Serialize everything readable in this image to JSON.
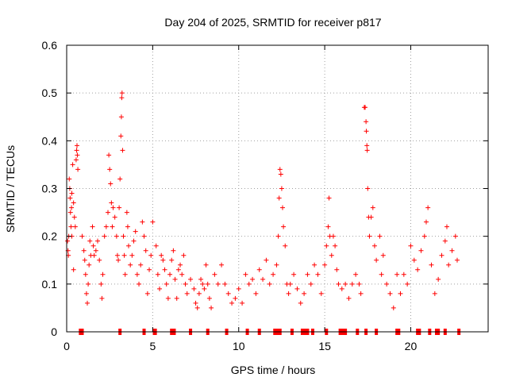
{
  "chart_data": {
    "type": "scatter",
    "title": "Day 204 of 2025, SRMTID for receiver p817",
    "xlabel": "GPS time / hours",
    "ylabel": "SRMTID / TECUs",
    "xlim": [
      0,
      24.5
    ],
    "ylim": [
      0,
      0.6
    ],
    "x_ticks": [
      0,
      5,
      10,
      15,
      20
    ],
    "x_tick_labels": [
      "0",
      "5",
      "10",
      "15",
      "20"
    ],
    "y_ticks": [
      0,
      0.1,
      0.2,
      0.3,
      0.4,
      0.5,
      0.6
    ],
    "y_tick_labels": [
      "0",
      "0.1",
      "0.2",
      "0.3",
      "0.4",
      "0.5",
      "0.6"
    ],
    "grid": true,
    "marker": "plus",
    "series_color": "#ff0000",
    "series": [
      {
        "name": "SRMTID",
        "points": [
          [
            0.05,
            0.19
          ],
          [
            0.08,
            0.17
          ],
          [
            0.1,
            0.16
          ],
          [
            0.12,
            0.2
          ],
          [
            0.15,
            0.32
          ],
          [
            0.18,
            0.3
          ],
          [
            0.2,
            0.28
          ],
          [
            0.22,
            0.25
          ],
          [
            0.25,
            0.22
          ],
          [
            0.28,
            0.26
          ],
          [
            0.3,
            0.29
          ],
          [
            0.35,
            0.35
          ],
          [
            0.4,
            0.27
          ],
          [
            0.45,
            0.24
          ],
          [
            0.5,
            0.22
          ],
          [
            0.55,
            0.36
          ],
          [
            0.58,
            0.38
          ],
          [
            0.6,
            0.39
          ],
          [
            0.62,
            0.37
          ],
          [
            0.65,
            0.34
          ],
          [
            0.4,
            0.13
          ],
          [
            0.3,
            0.2
          ],
          [
            0.9,
            0.2
          ],
          [
            1.0,
            0.17
          ],
          [
            1.05,
            0.15
          ],
          [
            1.1,
            0.12
          ],
          [
            1.15,
            0.08
          ],
          [
            1.2,
            0.06
          ],
          [
            1.25,
            0.1
          ],
          [
            1.3,
            0.14
          ],
          [
            1.35,
            0.19
          ],
          [
            1.4,
            0.16
          ],
          [
            1.5,
            0.22
          ],
          [
            1.55,
            0.18
          ],
          [
            1.6,
            0.16
          ],
          [
            1.7,
            0.17
          ],
          [
            1.8,
            0.19
          ],
          [
            1.9,
            0.15
          ],
          [
            2.0,
            0.1
          ],
          [
            2.05,
            0.07
          ],
          [
            2.1,
            0.12
          ],
          [
            2.2,
            0.2
          ],
          [
            2.3,
            0.22
          ],
          [
            2.4,
            0.25
          ],
          [
            2.45,
            0.37
          ],
          [
            2.5,
            0.34
          ],
          [
            2.55,
            0.31
          ],
          [
            2.6,
            0.27
          ],
          [
            2.65,
            0.22
          ],
          [
            2.7,
            0.26
          ],
          [
            2.8,
            0.24
          ],
          [
            2.9,
            0.2
          ],
          [
            2.95,
            0.16
          ],
          [
            3.0,
            0.15
          ],
          [
            3.05,
            0.26
          ],
          [
            3.1,
            0.32
          ],
          [
            3.15,
            0.41
          ],
          [
            3.18,
            0.45
          ],
          [
            3.2,
            0.49
          ],
          [
            3.22,
            0.5
          ],
          [
            3.25,
            0.38
          ],
          [
            3.3,
            0.2
          ],
          [
            3.35,
            0.16
          ],
          [
            3.4,
            0.12
          ],
          [
            3.5,
            0.25
          ],
          [
            3.55,
            0.22
          ],
          [
            3.6,
            0.18
          ],
          [
            3.7,
            0.14
          ],
          [
            3.8,
            0.16
          ],
          [
            3.9,
            0.19
          ],
          [
            4.0,
            0.21
          ],
          [
            4.1,
            0.12
          ],
          [
            4.2,
            0.1
          ],
          [
            4.3,
            0.14
          ],
          [
            4.4,
            0.23
          ],
          [
            4.5,
            0.2
          ],
          [
            4.6,
            0.17
          ],
          [
            4.7,
            0.08
          ],
          [
            4.8,
            0.13
          ],
          [
            4.9,
            0.16
          ],
          [
            5.0,
            0.23
          ],
          [
            5.2,
            0.18
          ],
          [
            5.3,
            0.12
          ],
          [
            5.4,
            0.09
          ],
          [
            5.5,
            0.16
          ],
          [
            5.6,
            0.15
          ],
          [
            5.7,
            0.13
          ],
          [
            5.8,
            0.1
          ],
          [
            5.9,
            0.07
          ],
          [
            6.0,
            0.12
          ],
          [
            6.1,
            0.15
          ],
          [
            6.2,
            0.17
          ],
          [
            6.3,
            0.11
          ],
          [
            6.4,
            0.07
          ],
          [
            6.5,
            0.13
          ],
          [
            6.6,
            0.14
          ],
          [
            6.7,
            0.12
          ],
          [
            6.8,
            0.16
          ],
          [
            6.9,
            0.1
          ],
          [
            7.0,
            0.08
          ],
          [
            7.2,
            0.11
          ],
          [
            7.4,
            0.09
          ],
          [
            7.5,
            0.06
          ],
          [
            7.6,
            0.05
          ],
          [
            7.7,
            0.08
          ],
          [
            7.8,
            0.11
          ],
          [
            7.9,
            0.1
          ],
          [
            8.0,
            0.09
          ],
          [
            8.1,
            0.14
          ],
          [
            8.2,
            0.1
          ],
          [
            8.3,
            0.07
          ],
          [
            8.4,
            0.05
          ],
          [
            8.6,
            0.12
          ],
          [
            8.8,
            0.1
          ],
          [
            9.0,
            0.14
          ],
          [
            9.2,
            0.1
          ],
          [
            9.4,
            0.08
          ],
          [
            9.6,
            0.06
          ],
          [
            9.8,
            0.07
          ],
          [
            10.0,
            0.09
          ],
          [
            10.2,
            0.06
          ],
          [
            10.4,
            0.12
          ],
          [
            10.6,
            0.1
          ],
          [
            10.8,
            0.11
          ],
          [
            11.0,
            0.08
          ],
          [
            11.2,
            0.13
          ],
          [
            11.4,
            0.11
          ],
          [
            11.6,
            0.15
          ],
          [
            11.8,
            0.1
          ],
          [
            12.0,
            0.12
          ],
          [
            12.2,
            0.14
          ],
          [
            12.3,
            0.2
          ],
          [
            12.35,
            0.28
          ],
          [
            12.4,
            0.34
          ],
          [
            12.45,
            0.33
          ],
          [
            12.5,
            0.3
          ],
          [
            12.55,
            0.26
          ],
          [
            12.6,
            0.22
          ],
          [
            12.7,
            0.18
          ],
          [
            12.8,
            0.1
          ],
          [
            12.9,
            0.08
          ],
          [
            13.0,
            0.1
          ],
          [
            13.2,
            0.12
          ],
          [
            13.4,
            0.09
          ],
          [
            13.6,
            0.06
          ],
          [
            13.8,
            0.08
          ],
          [
            14.0,
            0.12
          ],
          [
            14.2,
            0.1
          ],
          [
            14.4,
            0.14
          ],
          [
            14.6,
            0.12
          ],
          [
            14.8,
            0.08
          ],
          [
            15.0,
            0.14
          ],
          [
            15.1,
            0.18
          ],
          [
            15.2,
            0.22
          ],
          [
            15.25,
            0.28
          ],
          [
            15.3,
            0.2
          ],
          [
            15.4,
            0.16
          ],
          [
            15.5,
            0.2
          ],
          [
            15.6,
            0.18
          ],
          [
            15.7,
            0.13
          ],
          [
            15.8,
            0.1
          ],
          [
            16.0,
            0.09
          ],
          [
            16.2,
            0.1
          ],
          [
            16.4,
            0.07
          ],
          [
            16.6,
            0.1
          ],
          [
            16.8,
            0.12
          ],
          [
            17.0,
            0.1
          ],
          [
            17.1,
            0.08
          ],
          [
            17.3,
            0.47
          ],
          [
            17.35,
            0.47
          ],
          [
            17.4,
            0.44
          ],
          [
            17.42,
            0.42
          ],
          [
            17.45,
            0.39
          ],
          [
            17.47,
            0.38
          ],
          [
            17.5,
            0.3
          ],
          [
            17.55,
            0.24
          ],
          [
            17.6,
            0.2
          ],
          [
            17.7,
            0.24
          ],
          [
            17.8,
            0.26
          ],
          [
            17.9,
            0.18
          ],
          [
            18.0,
            0.15
          ],
          [
            18.2,
            0.2
          ],
          [
            18.3,
            0.12
          ],
          [
            18.4,
            0.16
          ],
          [
            18.6,
            0.1
          ],
          [
            18.8,
            0.08
          ],
          [
            19.0,
            0.05
          ],
          [
            19.2,
            0.12
          ],
          [
            19.4,
            0.08
          ],
          [
            19.6,
            0.12
          ],
          [
            19.8,
            0.1
          ],
          [
            20.0,
            0.18
          ],
          [
            20.2,
            0.15
          ],
          [
            20.4,
            0.13
          ],
          [
            20.6,
            0.17
          ],
          [
            20.8,
            0.2
          ],
          [
            20.9,
            0.23
          ],
          [
            21.0,
            0.26
          ],
          [
            21.2,
            0.14
          ],
          [
            21.4,
            0.08
          ],
          [
            21.6,
            0.11
          ],
          [
            21.8,
            0.16
          ],
          [
            22.0,
            0.19
          ],
          [
            22.1,
            0.22
          ],
          [
            22.2,
            0.14
          ],
          [
            22.4,
            0.17
          ],
          [
            22.6,
            0.2
          ],
          [
            22.7,
            0.15
          ]
        ]
      }
    ],
    "baseline_markers_x": [
      0.8,
      0.85,
      0.9,
      3.1,
      4.5,
      5.1,
      5.15,
      6.1,
      6.2,
      6.25,
      7.2,
      8.2,
      9.3,
      10.5,
      11.2,
      12.1,
      12.2,
      12.3,
      12.4,
      13.1,
      13.7,
      13.8,
      13.9,
      14.0,
      14.3,
      15.1,
      15.9,
      16.0,
      16.1,
      16.2,
      16.9,
      17.4,
      18.0,
      19.2,
      19.3,
      20.4,
      20.5,
      21.1,
      21.5,
      21.6,
      22.0,
      22.8
    ]
  }
}
